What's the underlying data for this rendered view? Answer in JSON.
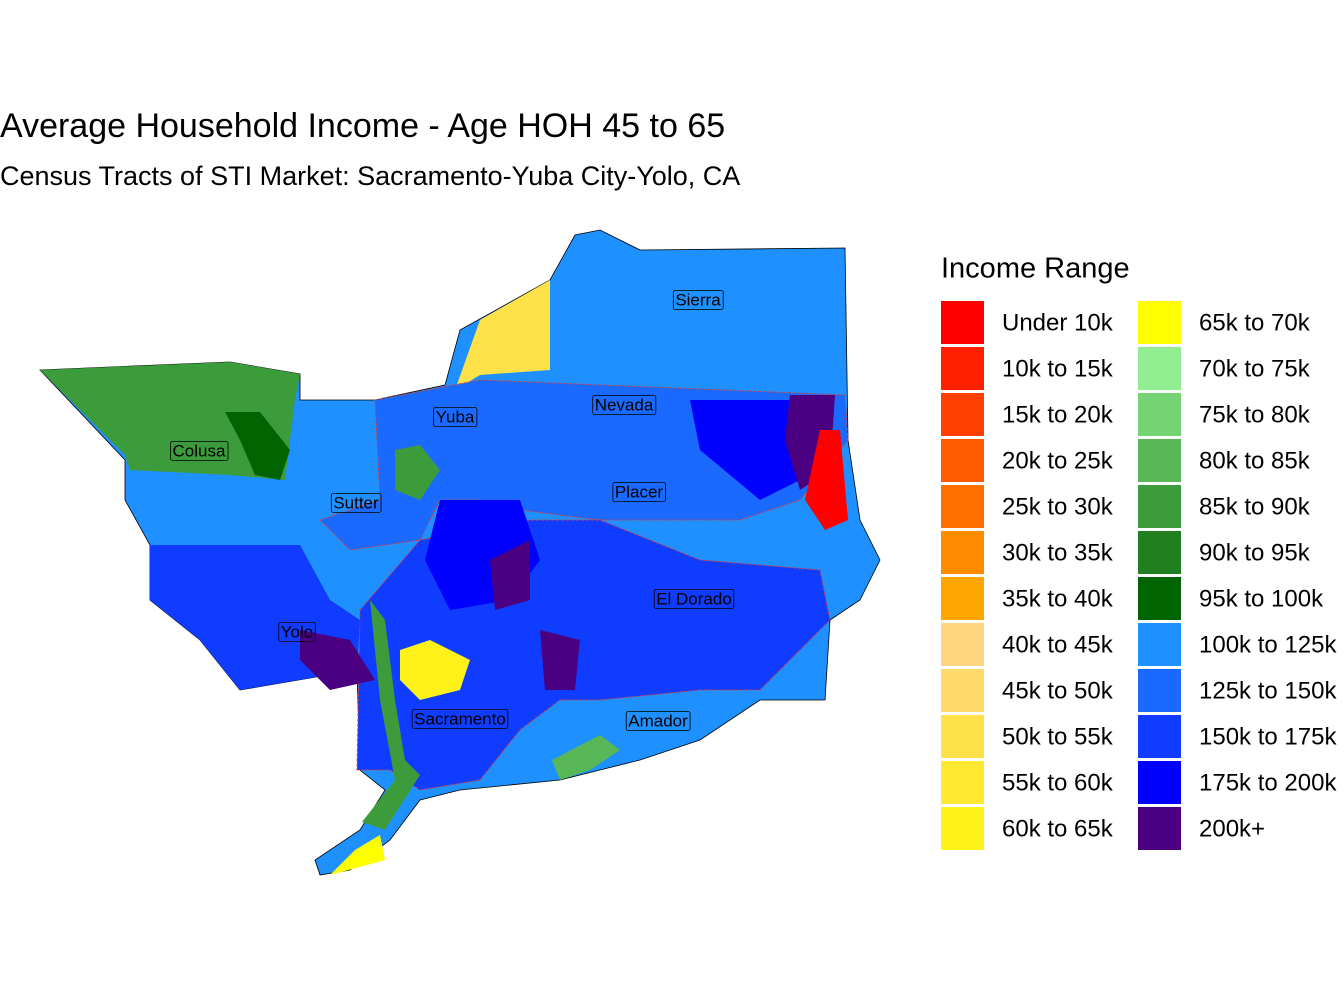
{
  "title": "Average Household Income - Age HOH 45 to 65",
  "subtitle": "Census Tracts of STI Market: Sacramento-Yuba City-Yolo, CA",
  "legend": {
    "title": "Income Range",
    "items": [
      {
        "label": "Under 10k",
        "color": "#FF0000"
      },
      {
        "label": "10k to 15k",
        "color": "#FF2000"
      },
      {
        "label": "15k to 20k",
        "color": "#FF4000"
      },
      {
        "label": "20k to 25k",
        "color": "#FF5A00"
      },
      {
        "label": "25k to 30k",
        "color": "#FF7000"
      },
      {
        "label": "30k to 35k",
        "color": "#FF8C00"
      },
      {
        "label": "35k to 40k",
        "color": "#FFA500"
      },
      {
        "label": "40k to 45k",
        "color": "#FFD580"
      },
      {
        "label": "45k to 50k",
        "color": "#FFDA6A"
      },
      {
        "label": "50k to 55k",
        "color": "#FFE14A"
      },
      {
        "label": "55k to 60k",
        "color": "#FFE830"
      },
      {
        "label": "60k to 65k",
        "color": "#FFF21A"
      },
      {
        "label": "65k to 70k",
        "color": "#FFFF00"
      },
      {
        "label": "70k to 75k",
        "color": "#90EE90"
      },
      {
        "label": "75k to 80k",
        "color": "#74D474"
      },
      {
        "label": "80k to 85k",
        "color": "#58B858"
      },
      {
        "label": "85k to 90k",
        "color": "#3C9C3C"
      },
      {
        "label": "90k to 95k",
        "color": "#208020"
      },
      {
        "label": "95k to 100k",
        "color": "#006400"
      },
      {
        "label": "100k to 125k",
        "color": "#1E90FF"
      },
      {
        "label": "125k to 150k",
        "color": "#1A6AFF"
      },
      {
        "label": "150k to 175k",
        "color": "#0F3CFF"
      },
      {
        "label": "175k to 200k",
        "color": "#0000FF"
      },
      {
        "label": "200k+",
        "color": "#4B0082"
      }
    ]
  },
  "counties": [
    "Sierra",
    "Yuba",
    "Nevada",
    "Colusa",
    "Sutter",
    "Placer",
    "El Dorado",
    "Yolo",
    "Sacramento",
    "Amador"
  ]
}
